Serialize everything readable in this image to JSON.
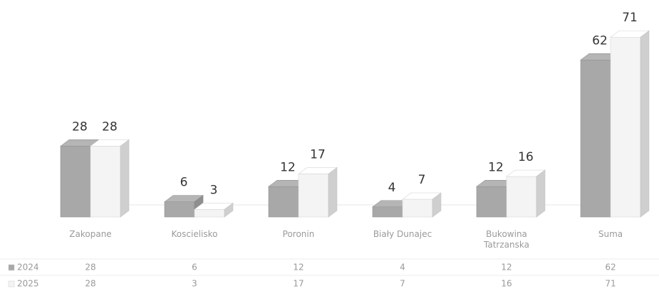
{
  "chart_data": {
    "type": "bar3d",
    "categories": [
      "Zakopane",
      "Koscielisko",
      "Poronin",
      "Biały Dunajec",
      "Bukowina Tatrzanska",
      "Suma"
    ],
    "series": [
      {
        "name": "2024",
        "color": "#a8a8a8",
        "values": [
          28,
          6,
          12,
          4,
          12,
          62
        ]
      },
      {
        "name": "2025",
        "color": "#f4f4f4",
        "values": [
          28,
          3,
          17,
          7,
          16,
          71
        ]
      }
    ]
  }
}
